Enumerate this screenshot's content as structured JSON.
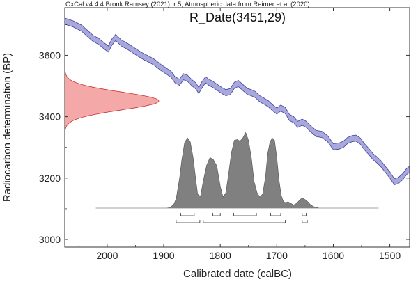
{
  "header": "OxCal v4.4.4 Bronk Ramsey (2021); r:5; Atmospheric data from Reimer et al (2020)",
  "chart_data": {
    "type": "area",
    "title": "R_Date(3451,29)",
    "xlabel": "Calibrated date (calBC)",
    "ylabel": "Radiocarbon determination (BP)",
    "xlim": [
      2075,
      1465
    ],
    "ylim": [
      2975,
      3755
    ],
    "xticks": [
      2000,
      1900,
      1800,
      1700,
      1600,
      1500
    ],
    "yticks": [
      3000,
      3200,
      3400,
      3600
    ],
    "colors": {
      "calibration_curve": "#a8a8dc",
      "calibration_edge": "#4040a0",
      "radiocarbon_date": "#f4a8a8",
      "radiocarbon_edge": "#c83030",
      "calibrated_distribution": "#808080"
    },
    "radiocarbon_date": {
      "mean": 3451,
      "error": 29
    },
    "calibration_curve": {
      "x": [
        2075,
        2060,
        2045,
        2035,
        2025,
        2015,
        2005,
        1998,
        1992,
        1985,
        1975,
        1965,
        1955,
        1945,
        1935,
        1925,
        1915,
        1905,
        1895,
        1887,
        1880,
        1872,
        1865,
        1858,
        1850,
        1843,
        1838,
        1832,
        1826,
        1820,
        1813,
        1805,
        1797,
        1790,
        1782,
        1775,
        1768,
        1760,
        1752,
        1745,
        1738,
        1730,
        1722,
        1715,
        1708,
        1700,
        1693,
        1685,
        1678,
        1670,
        1663,
        1655,
        1648,
        1640,
        1630,
        1620,
        1610,
        1600,
        1590,
        1582,
        1575,
        1567,
        1560,
        1552,
        1545,
        1538,
        1530,
        1522,
        1515,
        1508,
        1500,
        1492,
        1485,
        1477,
        1470,
        1465
      ],
      "y": [
        3711,
        3702,
        3688,
        3671,
        3655,
        3645,
        3630,
        3620,
        3642,
        3658,
        3640,
        3630,
        3618,
        3606,
        3595,
        3586,
        3575,
        3560,
        3548,
        3538,
        3520,
        3512,
        3530,
        3525,
        3510,
        3500,
        3485,
        3505,
        3520,
        3512,
        3505,
        3495,
        3485,
        3478,
        3482,
        3502,
        3508,
        3495,
        3482,
        3478,
        3472,
        3458,
        3450,
        3442,
        3430,
        3418,
        3428,
        3420,
        3398,
        3390,
        3375,
        3382,
        3375,
        3360,
        3345,
        3342,
        3328,
        3302,
        3304,
        3310,
        3322,
        3328,
        3330,
        3320,
        3302,
        3288,
        3270,
        3258,
        3245,
        3228,
        3210,
        3188,
        3192,
        3205,
        3222,
        3228
      ],
      "sigma": [
        10,
        10,
        10,
        10,
        10,
        10,
        10,
        10,
        10,
        10,
        10,
        10,
        10,
        10,
        10,
        10,
        10,
        10,
        10,
        10,
        10,
        10,
        10,
        10,
        10,
        10,
        10,
        10,
        10,
        10,
        10,
        10,
        10,
        10,
        10,
        10,
        10,
        10,
        10,
        10,
        10,
        10,
        10,
        10,
        10,
        10,
        10,
        10,
        10,
        10,
        10,
        10,
        10,
        10,
        10,
        10,
        10,
        10,
        10,
        10,
        10,
        10,
        10,
        10,
        10,
        10,
        10,
        10,
        10,
        10,
        10,
        10,
        10,
        10,
        10,
        10
      ]
    },
    "calibrated_distribution": {
      "x": [
        2020,
        1895,
        1888,
        1882,
        1878,
        1872,
        1868,
        1863,
        1858,
        1853,
        1848,
        1843,
        1840,
        1835,
        1830,
        1824,
        1818,
        1812,
        1806,
        1800,
        1795,
        1790,
        1785,
        1780,
        1775,
        1770,
        1765,
        1760,
        1755,
        1750,
        1745,
        1740,
        1735,
        1730,
        1725,
        1720,
        1716,
        1712,
        1708,
        1704,
        1700,
        1696,
        1692,
        1688,
        1684,
        1680,
        1675,
        1670,
        1665,
        1660,
        1655,
        1650,
        1645,
        1640,
        1635,
        1630,
        1625,
        1520
      ],
      "y": [
        0,
        0,
        0.01,
        0.05,
        0.12,
        0.38,
        0.62,
        0.84,
        0.9,
        0.85,
        0.65,
        0.35,
        0.18,
        0.15,
        0.35,
        0.55,
        0.65,
        0.62,
        0.54,
        0.28,
        0.14,
        0.2,
        0.45,
        0.72,
        0.87,
        0.88,
        0.86,
        0.9,
        0.97,
        0.87,
        0.65,
        0.34,
        0.2,
        0.14,
        0.18,
        0.4,
        0.7,
        0.85,
        0.9,
        0.87,
        0.65,
        0.36,
        0.16,
        0.08,
        0.07,
        0.08,
        0.06,
        0.04,
        0.06,
        0.1,
        0.13,
        0.11,
        0.08,
        0.04,
        0.02,
        0.01,
        0,
        0
      ]
    },
    "ranges_1sigma": [
      [
        1870,
        1846
      ],
      [
        1813,
        1800
      ],
      [
        1776,
        1736
      ],
      [
        1711,
        1693
      ],
      [
        1655,
        1648
      ]
    ],
    "ranges_2sigma": [
      [
        1878,
        1836
      ],
      [
        1830,
        1685
      ],
      [
        1655,
        1646
      ]
    ]
  }
}
